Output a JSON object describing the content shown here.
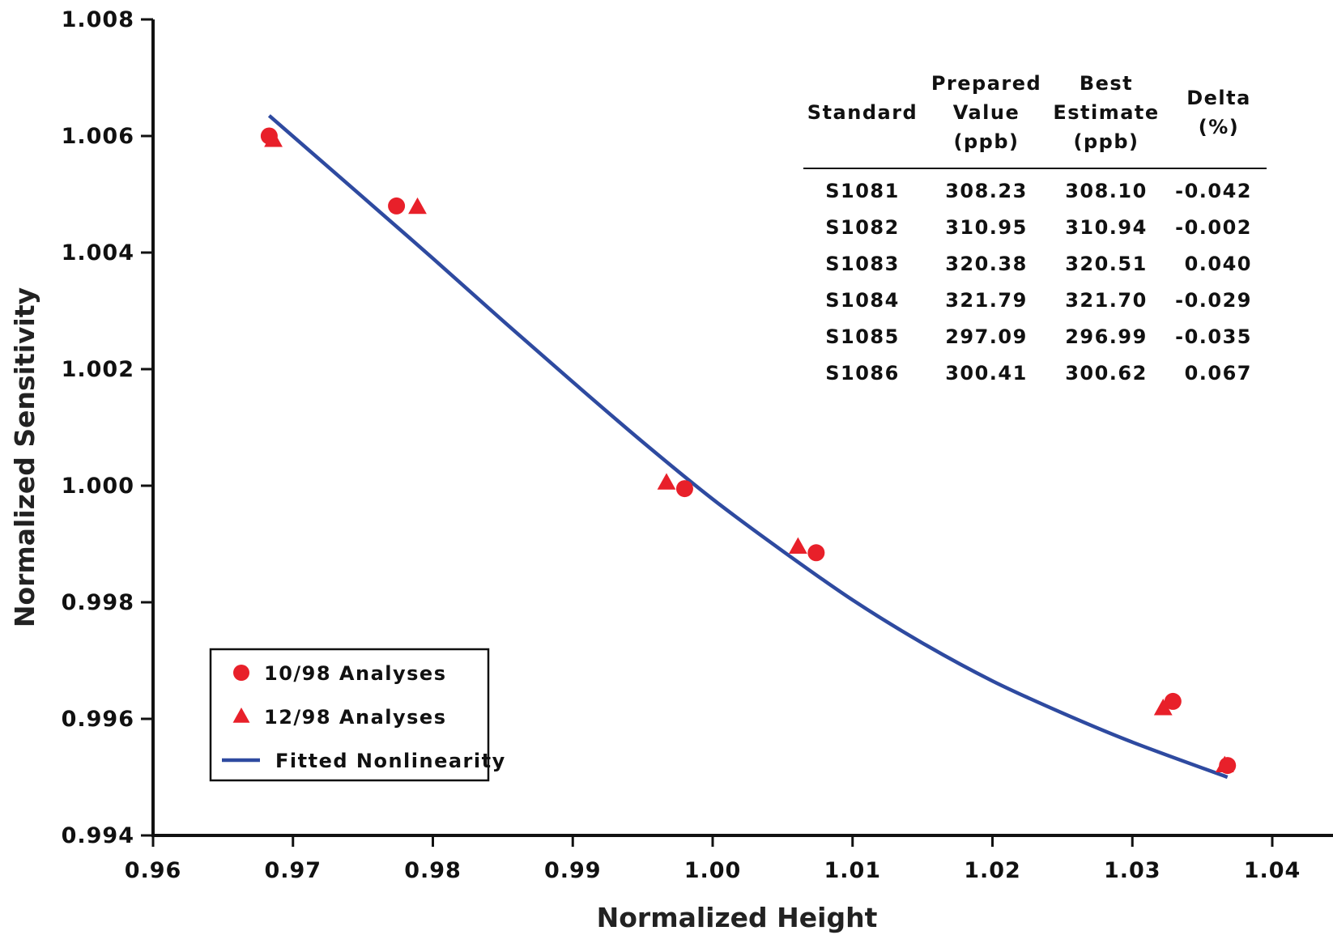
{
  "chart_data": {
    "type": "scatter",
    "xlabel": "Normalized Height",
    "ylabel": "Normalized Sensitivity",
    "xlim": [
      0.96,
      1.04
    ],
    "ylim": [
      0.994,
      1.008
    ],
    "x_ticks": [
      "0.96",
      "0.97",
      "0.98",
      "0.99",
      "1.00",
      "1.01",
      "1.02",
      "1.03",
      "1.04"
    ],
    "y_ticks": [
      "0.994",
      "0.996",
      "0.998",
      "1.000",
      "1.002",
      "1.004",
      "1.006",
      "1.008"
    ],
    "grid": false,
    "legend_position": "bottom-left",
    "colors": {
      "markers": "#e8202a",
      "fit_line": "#2e4aa0",
      "axes": "#111111"
    },
    "series": [
      {
        "name": "10/98 Analyses",
        "marker": "circle",
        "points": [
          {
            "x": 0.9683,
            "y": 1.006
          },
          {
            "x": 0.9774,
            "y": 1.0048
          },
          {
            "x": 0.998,
            "y": 0.99995
          },
          {
            "x": 1.0074,
            "y": 0.99885
          },
          {
            "x": 1.0329,
            "y": 0.9963
          },
          {
            "x": 1.0368,
            "y": 0.9952
          }
        ]
      },
      {
        "name": "12/98 Analyses",
        "marker": "triangle",
        "points": [
          {
            "x": 0.9686,
            "y": 1.00593
          },
          {
            "x": 0.9789,
            "y": 1.00478
          },
          {
            "x": 0.9967,
            "y": 1.00005
          },
          {
            "x": 1.0061,
            "y": 0.99895
          },
          {
            "x": 1.0322,
            "y": 0.99618
          },
          {
            "x": 1.0366,
            "y": 0.9952
          }
        ]
      },
      {
        "name": "Fitted Nonlinearity",
        "marker": "line",
        "points": [
          {
            "x": 0.9683,
            "y": 1.00635
          },
          {
            "x": 0.975,
            "y": 1.00495
          },
          {
            "x": 0.98,
            "y": 1.0039
          },
          {
            "x": 0.985,
            "y": 1.00283
          },
          {
            "x": 0.99,
            "y": 1.00178
          },
          {
            "x": 0.995,
            "y": 1.00075
          },
          {
            "x": 1.0,
            "y": 0.99977
          },
          {
            "x": 1.005,
            "y": 0.99888
          },
          {
            "x": 1.01,
            "y": 0.99804
          },
          {
            "x": 1.015,
            "y": 0.9973
          },
          {
            "x": 1.02,
            "y": 0.99665
          },
          {
            "x": 1.025,
            "y": 0.9961
          },
          {
            "x": 1.03,
            "y": 0.9956
          },
          {
            "x": 1.0368,
            "y": 0.995
          }
        ]
      }
    ],
    "table": {
      "headers": [
        [
          "Standard"
        ],
        [
          "Prepared",
          "Value",
          "(ppb)"
        ],
        [
          "Best",
          "Estimate",
          "(ppb)"
        ],
        [
          "Delta",
          "(%)"
        ]
      ],
      "rows": [
        [
          "S1081",
          "308.23",
          "308.10",
          "-0.042"
        ],
        [
          "S1082",
          "310.95",
          "310.94",
          "-0.002"
        ],
        [
          "S1083",
          "320.38",
          "320.51",
          "0.040"
        ],
        [
          "S1084",
          "321.79",
          "321.70",
          "-0.029"
        ],
        [
          "S1085",
          "297.09",
          "296.99",
          "-0.035"
        ],
        [
          "S1086",
          "300.41",
          "300.62",
          "0.067"
        ]
      ]
    }
  }
}
